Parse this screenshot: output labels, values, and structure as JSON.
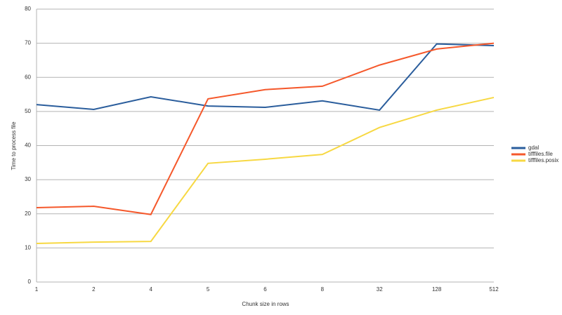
{
  "chart_data": {
    "type": "line",
    "x_label": "Chunk size in rows",
    "y_label": "Time to process file",
    "categories": [
      "1",
      "2",
      "4",
      "5",
      "6",
      "8",
      "32",
      "128",
      "512"
    ],
    "series": [
      {
        "name": "gdal",
        "color": "#2a5d9c",
        "values": [
          52.0,
          50.6,
          54.3,
          51.6,
          51.2,
          53.1,
          50.4,
          69.8,
          69.3
        ]
      },
      {
        "name": "tifffiles.file",
        "color": "#f5582b",
        "values": [
          21.8,
          22.2,
          19.8,
          53.7,
          56.4,
          57.4,
          63.6,
          68.3,
          70.0
        ]
      },
      {
        "name": "tifffiles.posix",
        "color": "#f7d842",
        "values": [
          11.3,
          11.7,
          11.9,
          34.8,
          36.0,
          37.4,
          45.3,
          50.4,
          54.1
        ]
      }
    ],
    "ylim": [
      0,
      80
    ],
    "yticks": [
      0,
      10,
      20,
      30,
      40,
      50,
      60,
      70,
      80
    ],
    "grid": true,
    "legend": "right"
  }
}
